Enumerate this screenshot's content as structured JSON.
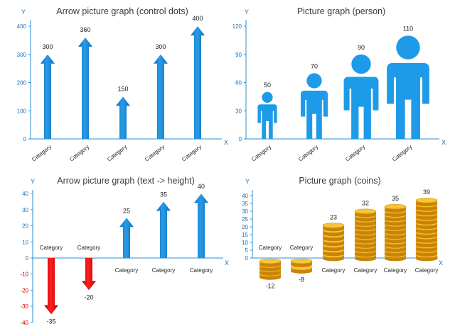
{
  "chart_data": [
    {
      "type": "bar",
      "style": "arrow",
      "title": "Arrow picture graph (control dots)",
      "x_axis_letter": "X",
      "y_axis_letter": "Y",
      "categories": [
        "Category",
        "Category",
        "Category",
        "Category",
        "Category"
      ],
      "values": [
        300,
        360,
        150,
        300,
        400
      ],
      "value_labels": [
        "300",
        "360",
        "150",
        "300",
        "400"
      ],
      "ylim": [
        0,
        400
      ],
      "yticks": [
        "0",
        "100",
        "200",
        "300",
        "400"
      ],
      "tick_label_angle": "rotated",
      "color": "#1a86d6"
    },
    {
      "type": "bar",
      "style": "person",
      "title": "Picture graph (person)",
      "x_axis_letter": "X",
      "y_axis_letter": "Y",
      "categories": [
        "Category",
        "Category",
        "Category",
        "Category"
      ],
      "values": [
        50,
        70,
        90,
        110
      ],
      "value_labels": [
        "50",
        "70",
        "90",
        "110"
      ],
      "ylim": [
        0,
        120
      ],
      "yticks": [
        "0",
        "30",
        "60",
        "90",
        "120"
      ],
      "tick_label_angle": "rotated",
      "color": "#1e9be8"
    },
    {
      "type": "bar",
      "style": "arrow-signed",
      "title": "Arrow picture graph (text -> height)",
      "x_axis_letter": "X",
      "y_axis_letter": "Y",
      "categories": [
        "Category",
        "Category",
        "Category",
        "Category",
        "Category"
      ],
      "values": [
        -35,
        -20,
        25,
        35,
        40
      ],
      "value_labels": [
        "-35",
        "-20",
        "25",
        "35",
        "40"
      ],
      "ylim": [
        -40,
        40
      ],
      "yticks": [
        "-40",
        "-30",
        "-20",
        "-10",
        "0",
        "10",
        "20",
        "30",
        "40"
      ],
      "positive_color": "#1a86d6",
      "negative_color": "#e00000"
    },
    {
      "type": "bar",
      "style": "coins",
      "title": "Picture graph (coins)",
      "x_axis_letter": "X",
      "y_axis_letter": "Y",
      "categories": [
        "Category",
        "Category",
        "Category",
        "Category",
        "Category",
        "Category"
      ],
      "values": [
        -12,
        -8,
        23,
        32,
        35,
        39
      ],
      "value_labels": [
        "-12",
        "-8",
        "23",
        "32",
        "35",
        "39"
      ],
      "ylim": [
        0,
        40
      ],
      "yticks": [
        "0",
        "5",
        "10",
        "15",
        "20",
        "25",
        "30",
        "35",
        "40"
      ],
      "color": "#f2b21a"
    }
  ]
}
